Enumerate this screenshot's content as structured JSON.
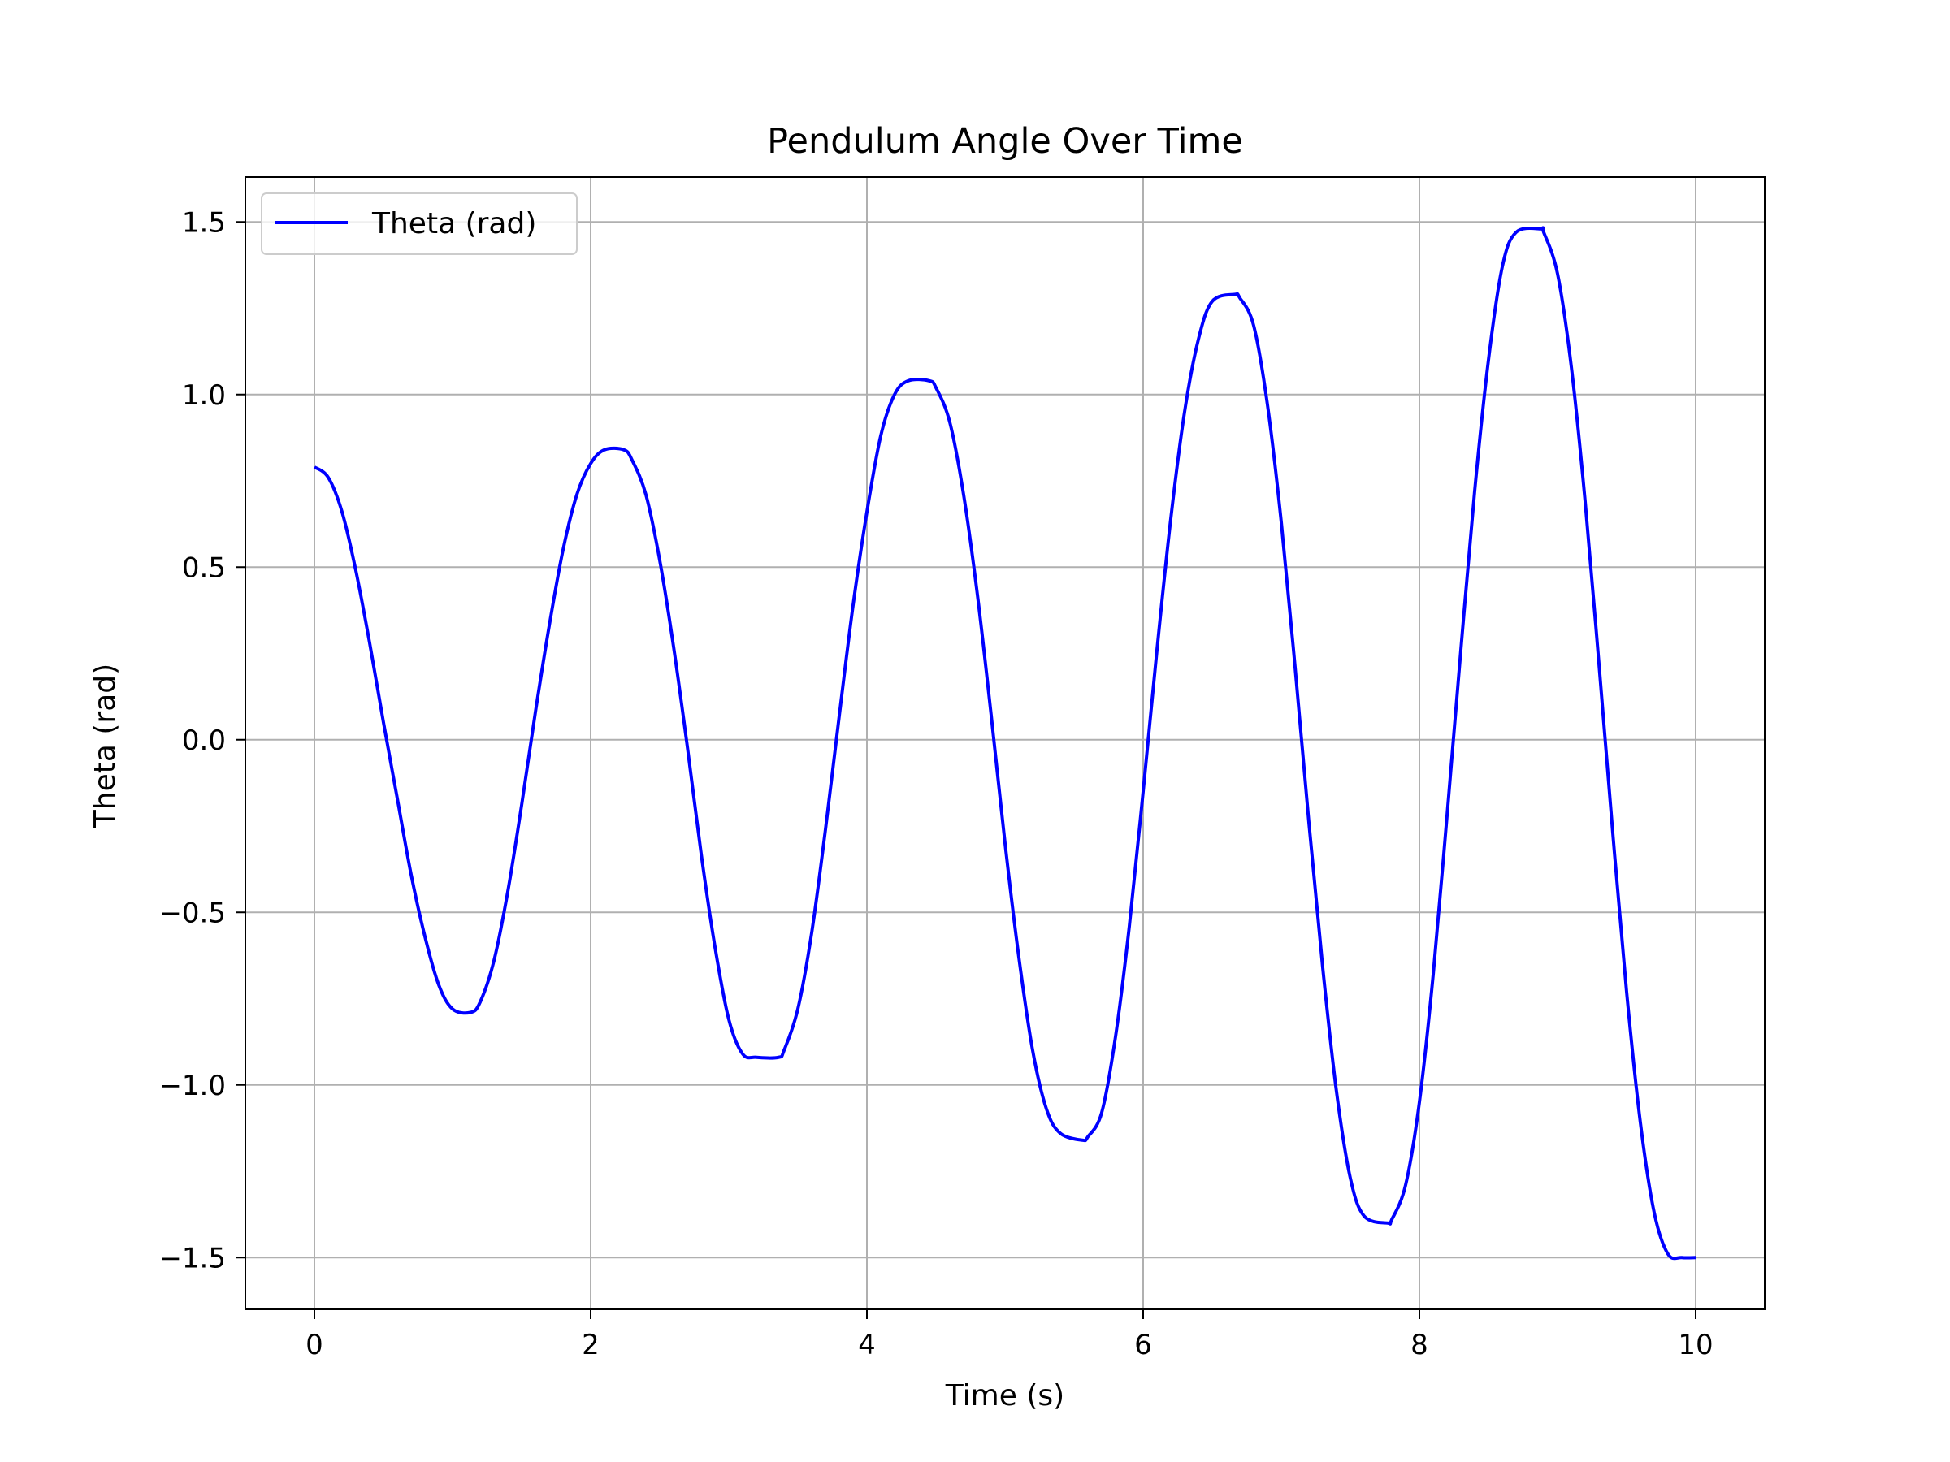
{
  "chart_data": {
    "type": "line",
    "title": "Pendulum Angle Over Time",
    "xlabel": "Time (s)",
    "ylabel": "Theta (rad)",
    "xlim": [
      -0.5,
      10.5
    ],
    "ylim": [
      -1.65,
      1.63
    ],
    "xticks": [
      0,
      2,
      4,
      6,
      8,
      10
    ],
    "xtick_labels": [
      "0",
      "2",
      "4",
      "6",
      "8",
      "10"
    ],
    "yticks": [
      1.5,
      1.0,
      0.5,
      0.0,
      -0.5,
      -1.0,
      -1.5
    ],
    "ytick_labels": [
      "1.5",
      "1.0",
      "0.5",
      "0.0",
      "−0.5",
      "−1.0",
      "−1.5"
    ],
    "grid": true,
    "legend_position": "top-left",
    "series": [
      {
        "name": "Theta (rad)",
        "color": "#0000ff",
        "x": [
          0,
          0.1,
          0.2,
          0.3,
          0.4,
          0.5,
          0.6,
          0.7,
          0.8,
          0.9,
          1.0,
          1.13,
          1.2,
          1.3,
          1.4,
          1.5,
          1.6,
          1.7,
          1.8,
          1.9,
          2.0,
          2.1,
          2.24,
          2.3,
          2.4,
          2.5,
          2.6,
          2.7,
          2.8,
          2.9,
          3.0,
          3.1,
          3.2,
          3.36,
          3.4,
          3.5,
          3.6,
          3.7,
          3.8,
          3.9,
          4.0,
          4.1,
          4.2,
          4.3,
          4.45,
          4.5,
          4.6,
          4.7,
          4.8,
          4.9,
          5.0,
          5.1,
          5.2,
          5.3,
          5.4,
          5.56,
          5.6,
          5.7,
          5.8,
          5.9,
          6.0,
          6.1,
          6.2,
          6.3,
          6.4,
          6.5,
          6.66,
          6.7,
          6.8,
          6.9,
          7.0,
          7.1,
          7.2,
          7.3,
          7.4,
          7.5,
          7.6,
          7.77,
          7.8,
          7.9,
          8.0,
          8.1,
          8.2,
          8.3,
          8.4,
          8.5,
          8.6,
          8.7,
          8.88,
          8.9,
          9.0,
          9.1,
          9.2,
          9.3,
          9.4,
          9.5,
          9.6,
          9.7,
          9.8,
          9.9,
          10.0
        ],
        "y": [
          0.79,
          0.76,
          0.66,
          0.49,
          0.28,
          0.05,
          -0.17,
          -0.39,
          -0.57,
          -0.71,
          -0.78,
          -0.79,
          -0.76,
          -0.64,
          -0.44,
          -0.19,
          0.08,
          0.33,
          0.55,
          0.71,
          0.8,
          0.84,
          0.84,
          0.81,
          0.71,
          0.52,
          0.27,
          -0.02,
          -0.33,
          -0.6,
          -0.81,
          -0.91,
          -0.92,
          -0.92,
          -0.9,
          -0.78,
          -0.56,
          -0.26,
          0.07,
          0.39,
          0.66,
          0.88,
          1.0,
          1.04,
          1.04,
          1.02,
          0.92,
          0.71,
          0.42,
          0.07,
          -0.3,
          -0.63,
          -0.9,
          -1.07,
          -1.14,
          -1.16,
          -1.15,
          -1.08,
          -0.86,
          -0.54,
          -0.15,
          0.26,
          0.64,
          0.95,
          1.16,
          1.27,
          1.29,
          1.28,
          1.2,
          0.97,
          0.63,
          0.21,
          -0.24,
          -0.66,
          -1.02,
          -1.27,
          -1.38,
          -1.4,
          -1.39,
          -1.29,
          -1.05,
          -0.68,
          -0.22,
          0.26,
          0.72,
          1.1,
          1.37,
          1.47,
          1.48,
          1.47,
          1.35,
          1.08,
          0.69,
          0.22,
          -0.27,
          -0.73,
          -1.11,
          -1.37,
          -1.49,
          -1.5,
          -1.5
        ]
      }
    ]
  }
}
